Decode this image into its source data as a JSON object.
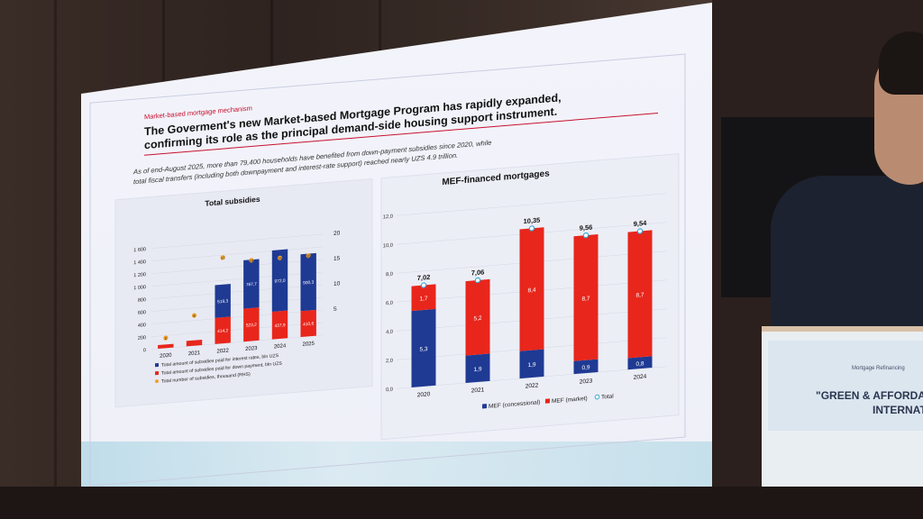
{
  "slide": {
    "section_label": "Market-based mortgage mechanism",
    "headline_line1": "The Goverment's new Market-based Mortgage Program has rapidly expanded,",
    "headline_line2": "confirming its role as the principal demand-side housing support instrument.",
    "subtext_line1": "As of end-August 2025, more than 79,400 households have benefited from down-payment subsidies since 2020, while",
    "subtext_line2": "total fiscal transfers (including both downpayment and interest-rate support) reached nearly UZS 4.9 trillion."
  },
  "podium": {
    "small_text": "Mortgage Refinancing",
    "line1": "\"GREEN & AFFORDA",
    "line2": "INTERNATIONA"
  },
  "colors": {
    "blue": "#1f3a93",
    "red": "#e8261c",
    "orange": "#f0a02a",
    "accent": "#c8102e"
  },
  "chart_data": [
    {
      "type": "bar",
      "title": "Total subsidies",
      "categories": [
        "2020",
        "2021",
        "2022",
        "2023",
        "2024",
        "2025"
      ],
      "series": [
        {
          "name": "Total amount of subsidies paid for interest rates, bln UZS",
          "values": [
            null,
            null,
            519.3,
            767.7,
            972.0,
            900.3
          ],
          "color": "#1f3a93"
        },
        {
          "name": "Total amount of subsidies paid for down payment, bln UZS",
          "values": [
            null,
            null,
            414.2,
            523.2,
            437.9,
            410.6
          ],
          "color": "#e8261c"
        },
        {
          "name": "Total number of subsidies, thousand (RHS)",
          "values": [
            2,
            6,
            17,
            16,
            16,
            16
          ],
          "color": "#f0a02a"
        }
      ],
      "labels": {
        "interest": [
          "",
          "",
          "519,3",
          "767,7",
          "972,0",
          "900,3"
        ],
        "down": [
          "",
          "",
          "414,2",
          "523,2",
          "437,9",
          "410,6"
        ],
        "count": [
          "2",
          "6",
          "17",
          "16",
          "16",
          "16"
        ]
      },
      "yticks_left": [
        "0",
        "200",
        "400",
        "600",
        "800",
        "1 000",
        "1 200",
        "1 400",
        "1 600"
      ],
      "yticks_right": [
        "5",
        "10",
        "15",
        "20"
      ],
      "ylim_left": [
        0,
        1600
      ],
      "ylim_right": [
        0,
        20
      ]
    },
    {
      "type": "bar",
      "title": "MEF-financed mortgages",
      "categories": [
        "2020",
        "2021",
        "2022",
        "2023",
        "2024"
      ],
      "series": [
        {
          "name": "MEF (concessional)",
          "values": [
            5.3,
            1.9,
            1.9,
            0.9,
            0.8
          ],
          "color": "#1f3a93"
        },
        {
          "name": "MEF (market)",
          "values": [
            1.7,
            5.2,
            8.4,
            8.7,
            8.7
          ],
          "color": "#e8261c"
        },
        {
          "name": "Total",
          "values": [
            7.02,
            7.06,
            10.35,
            9.56,
            9.54
          ]
        }
      ],
      "labels": {
        "concessional": [
          "5,3",
          "1,9",
          "1,9",
          "0,9",
          "0,8"
        ],
        "market": [
          "1,7",
          "5,2",
          "8,4",
          "8,7",
          "8,7"
        ],
        "total": [
          "7,02",
          "7,06",
          "10,35",
          "9,56",
          "9,54"
        ]
      },
      "yticks": [
        "0,0",
        "2,0",
        "4,0",
        "6,0",
        "8,0",
        "10,0",
        "12,0"
      ],
      "ylim": [
        0,
        12
      ]
    }
  ]
}
